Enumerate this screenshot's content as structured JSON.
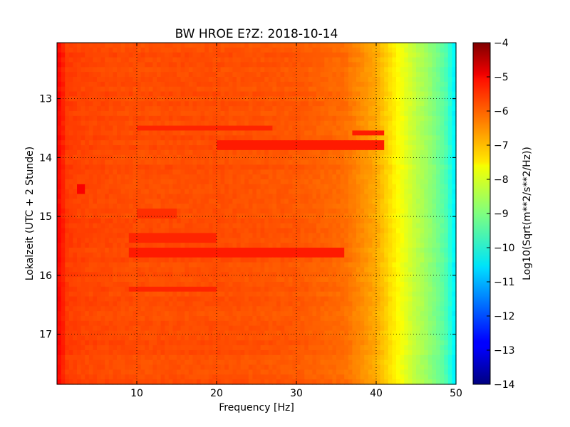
{
  "chart_data": {
    "type": "heatmap",
    "title": "BW HROE E?Z: 2018-10-14",
    "xlabel": "Frequency [Hz]",
    "ylabel": "Lokalzeit (UTC + 2 Stunde)",
    "xlim": [
      0,
      50
    ],
    "ylim": [
      12.05,
      17.85
    ],
    "y_inverted": true,
    "xticks": [
      10,
      20,
      30,
      40,
      50
    ],
    "yticks": [
      13,
      14,
      15,
      16,
      17
    ],
    "grid": true,
    "colormap": "jet",
    "colorbar": {
      "label": "Log10(Sqrt(m**2/s**2/Hz))",
      "range": [
        -14,
        -4
      ],
      "ticks": [
        -4,
        -5,
        -6,
        -7,
        -8,
        -9,
        -10,
        -11,
        -12,
        -13,
        -14
      ]
    },
    "frequency_profile": {
      "x": [
        0,
        0.5,
        1,
        3,
        10,
        20,
        30,
        36,
        38,
        40,
        41,
        42,
        43,
        44,
        45,
        46,
        47,
        48,
        49,
        49.6,
        50
      ],
      "values": [
        -5.3,
        -5.3,
        -5.8,
        -5.9,
        -6.0,
        -6.0,
        -6.1,
        -6.3,
        -6.6,
        -6.9,
        -7.2,
        -7.5,
        -7.8,
        -8.1,
        -8.4,
        -8.6,
        -8.9,
        -9.2,
        -9.6,
        -10.2,
        -10.4
      ]
    },
    "strong_lines": [
      {
        "x_range": [
          20,
          41
        ],
        "time": 13.8,
        "value": -5.5
      },
      {
        "x_range": [
          10,
          27
        ],
        "time": 13.5,
        "value": -5.6
      },
      {
        "x_range": [
          9,
          20
        ],
        "time": 15.35,
        "value": -5.6
      },
      {
        "x_range": [
          9,
          36
        ],
        "time": 15.6,
        "value": -5.5
      },
      {
        "x_range": [
          2.5,
          3.5
        ],
        "time": 14.55,
        "value": -5.2
      },
      {
        "x_range": [
          9,
          20
        ],
        "time": 16.25,
        "value": -5.6
      },
      {
        "x_range": [
          10,
          15
        ],
        "time": 14.95,
        "value": -5.7
      },
      {
        "x_range": [
          37,
          41
        ],
        "time": 13.6,
        "value": -5.5
      }
    ]
  }
}
